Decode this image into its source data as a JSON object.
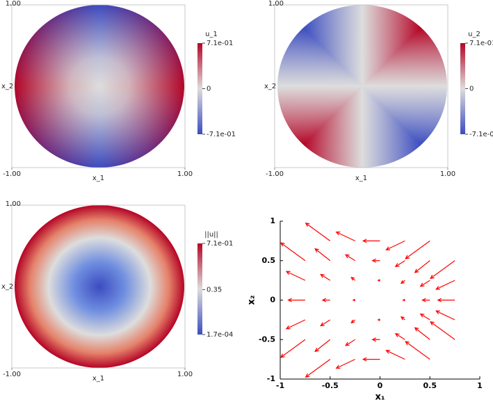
{
  "chart_data": [
    {
      "type": "heatmap",
      "title": "u_1",
      "xlabel": "x_1",
      "ylabel": "x_2",
      "xlim": [
        -1,
        1
      ],
      "ylim": [
        -1,
        1
      ],
      "xticks": [
        {
          "value": -1,
          "label": "-1.00"
        },
        {
          "value": 1,
          "label": "1.00"
        }
      ],
      "yticks": [
        {
          "value": 1,
          "label": "1.00"
        }
      ],
      "clim": [
        -0.71,
        0.71
      ],
      "cticks": [
        {
          "value": 0.71,
          "label": "7.1e-01"
        },
        0,
        {
          "value": -0.71,
          "label": "-7.1e-01"
        }
      ],
      "colors": [
        "#3b4cc0",
        "#dddddd",
        "#b40426"
      ]
    },
    {
      "type": "heatmap",
      "title": "u_2",
      "xlabel": "x_1",
      "ylabel": "x_2",
      "xlim": [
        -1,
        1
      ],
      "ylim": [
        -1,
        1
      ],
      "xticks": [
        {
          "value": -1,
          "label": "-1.00"
        },
        {
          "value": 1,
          "label": "1.00"
        }
      ],
      "yticks": [
        {
          "value": 1,
          "label": "1.00"
        }
      ],
      "clim": [
        -0.71,
        0.71
      ],
      "cticks": [
        {
          "value": 0.71,
          "label": "7.1e-01"
        },
        0,
        {
          "value": -0.71,
          "label": "-7.1e-01"
        }
      ],
      "colors": [
        "#3b4cc0",
        "#dddddd",
        "#b40426"
      ]
    },
    {
      "type": "heatmap",
      "title": "||u||",
      "xlabel": "x_1",
      "ylabel": "x_2",
      "xlim": [
        -1,
        1
      ],
      "ylim": [
        -1,
        1
      ],
      "xticks": [
        {
          "value": -1,
          "label": "-1.00"
        },
        {
          "value": 1,
          "label": "1.00"
        }
      ],
      "yticks": [
        {
          "value": 1,
          "label": "1.00"
        }
      ],
      "clim": [
        0.00017,
        0.71
      ],
      "cticks": [
        {
          "value": 0.71,
          "label": "7.1e-01"
        },
        0.35,
        {
          "value": 0.00017,
          "label": "1.7e-04"
        }
      ],
      "colors": [
        "#3b4cc0",
        "#dddddd",
        "#b40426"
      ]
    },
    {
      "type": "quiver",
      "xlabel": "x₁",
      "ylabel": "x₂",
      "xlim": [
        -1,
        1
      ],
      "ylim": [
        -1,
        1
      ],
      "xticks": [
        -1,
        -0.5,
        0,
        0.5,
        1
      ],
      "yticks": [
        -1,
        -0.5,
        0,
        0.5,
        1
      ],
      "color": "#ff0000",
      "x": [
        -0.5,
        -0.25,
        0,
        0.25,
        0.5,
        -0.75,
        -0.5,
        -0.25,
        0,
        0.25,
        0.5,
        0.75,
        -0.75,
        -0.5,
        -0.25,
        0,
        0.25,
        0.5,
        0.75,
        -0.75,
        -0.5,
        -0.25,
        0,
        0.25,
        0.5,
        0.75,
        -0.75,
        -0.5,
        -0.25,
        0,
        0.25,
        0.5,
        0.75,
        -0.75,
        -0.5,
        -0.25,
        0,
        0.25,
        0.5,
        0.75,
        -0.5,
        -0.25,
        0,
        0.25,
        0.5
      ],
      "y": [
        0.75,
        0.75,
        0.75,
        0.75,
        0.75,
        0.5,
        0.5,
        0.5,
        0.5,
        0.5,
        0.5,
        0.5,
        0.25,
        0.25,
        0.25,
        0.25,
        0.25,
        0.25,
        0.25,
        0,
        0,
        0,
        0,
        0,
        0,
        0,
        -0.25,
        -0.25,
        -0.25,
        -0.25,
        -0.25,
        -0.25,
        -0.25,
        -0.5,
        -0.5,
        -0.5,
        -0.5,
        -0.5,
        -0.5,
        -0.5,
        -0.75,
        -0.75,
        -0.75,
        -0.75,
        -0.75
      ],
      "u": [
        -0.8125,
        -0.625,
        -0.5625,
        -0.625,
        -0.8125,
        -0.8125,
        -0.5,
        -0.3125,
        -0.25,
        -0.3125,
        -0.5,
        -0.8125,
        -0.625,
        -0.3125,
        -0.125,
        -0.0625,
        -0.125,
        -0.3125,
        -0.625,
        -0.5625,
        -0.25,
        -0.0625,
        0,
        -0.0625,
        -0.25,
        -0.5625,
        -0.625,
        -0.3125,
        -0.125,
        -0.0625,
        -0.125,
        -0.3125,
        -0.625,
        -0.8125,
        -0.5,
        -0.3125,
        -0.25,
        -0.3125,
        -0.5,
        -0.8125,
        -0.8125,
        -0.625,
        -0.5625,
        -0.625,
        -0.8125
      ],
      "v": [
        0.75,
        0.375,
        0,
        -0.375,
        -0.75,
        0.75,
        0.5,
        0.25,
        0,
        -0.25,
        -0.5,
        -0.75,
        0.375,
        0.25,
        0.125,
        0,
        -0.125,
        -0.25,
        -0.375,
        0,
        0,
        0,
        0,
        0,
        0,
        0,
        -0.375,
        -0.25,
        -0.125,
        0,
        0.125,
        0.25,
        0.375,
        -0.75,
        -0.5,
        -0.25,
        0,
        0.25,
        0.5,
        0.75,
        -0.75,
        -0.375,
        0,
        0.375,
        0.75
      ]
    }
  ]
}
